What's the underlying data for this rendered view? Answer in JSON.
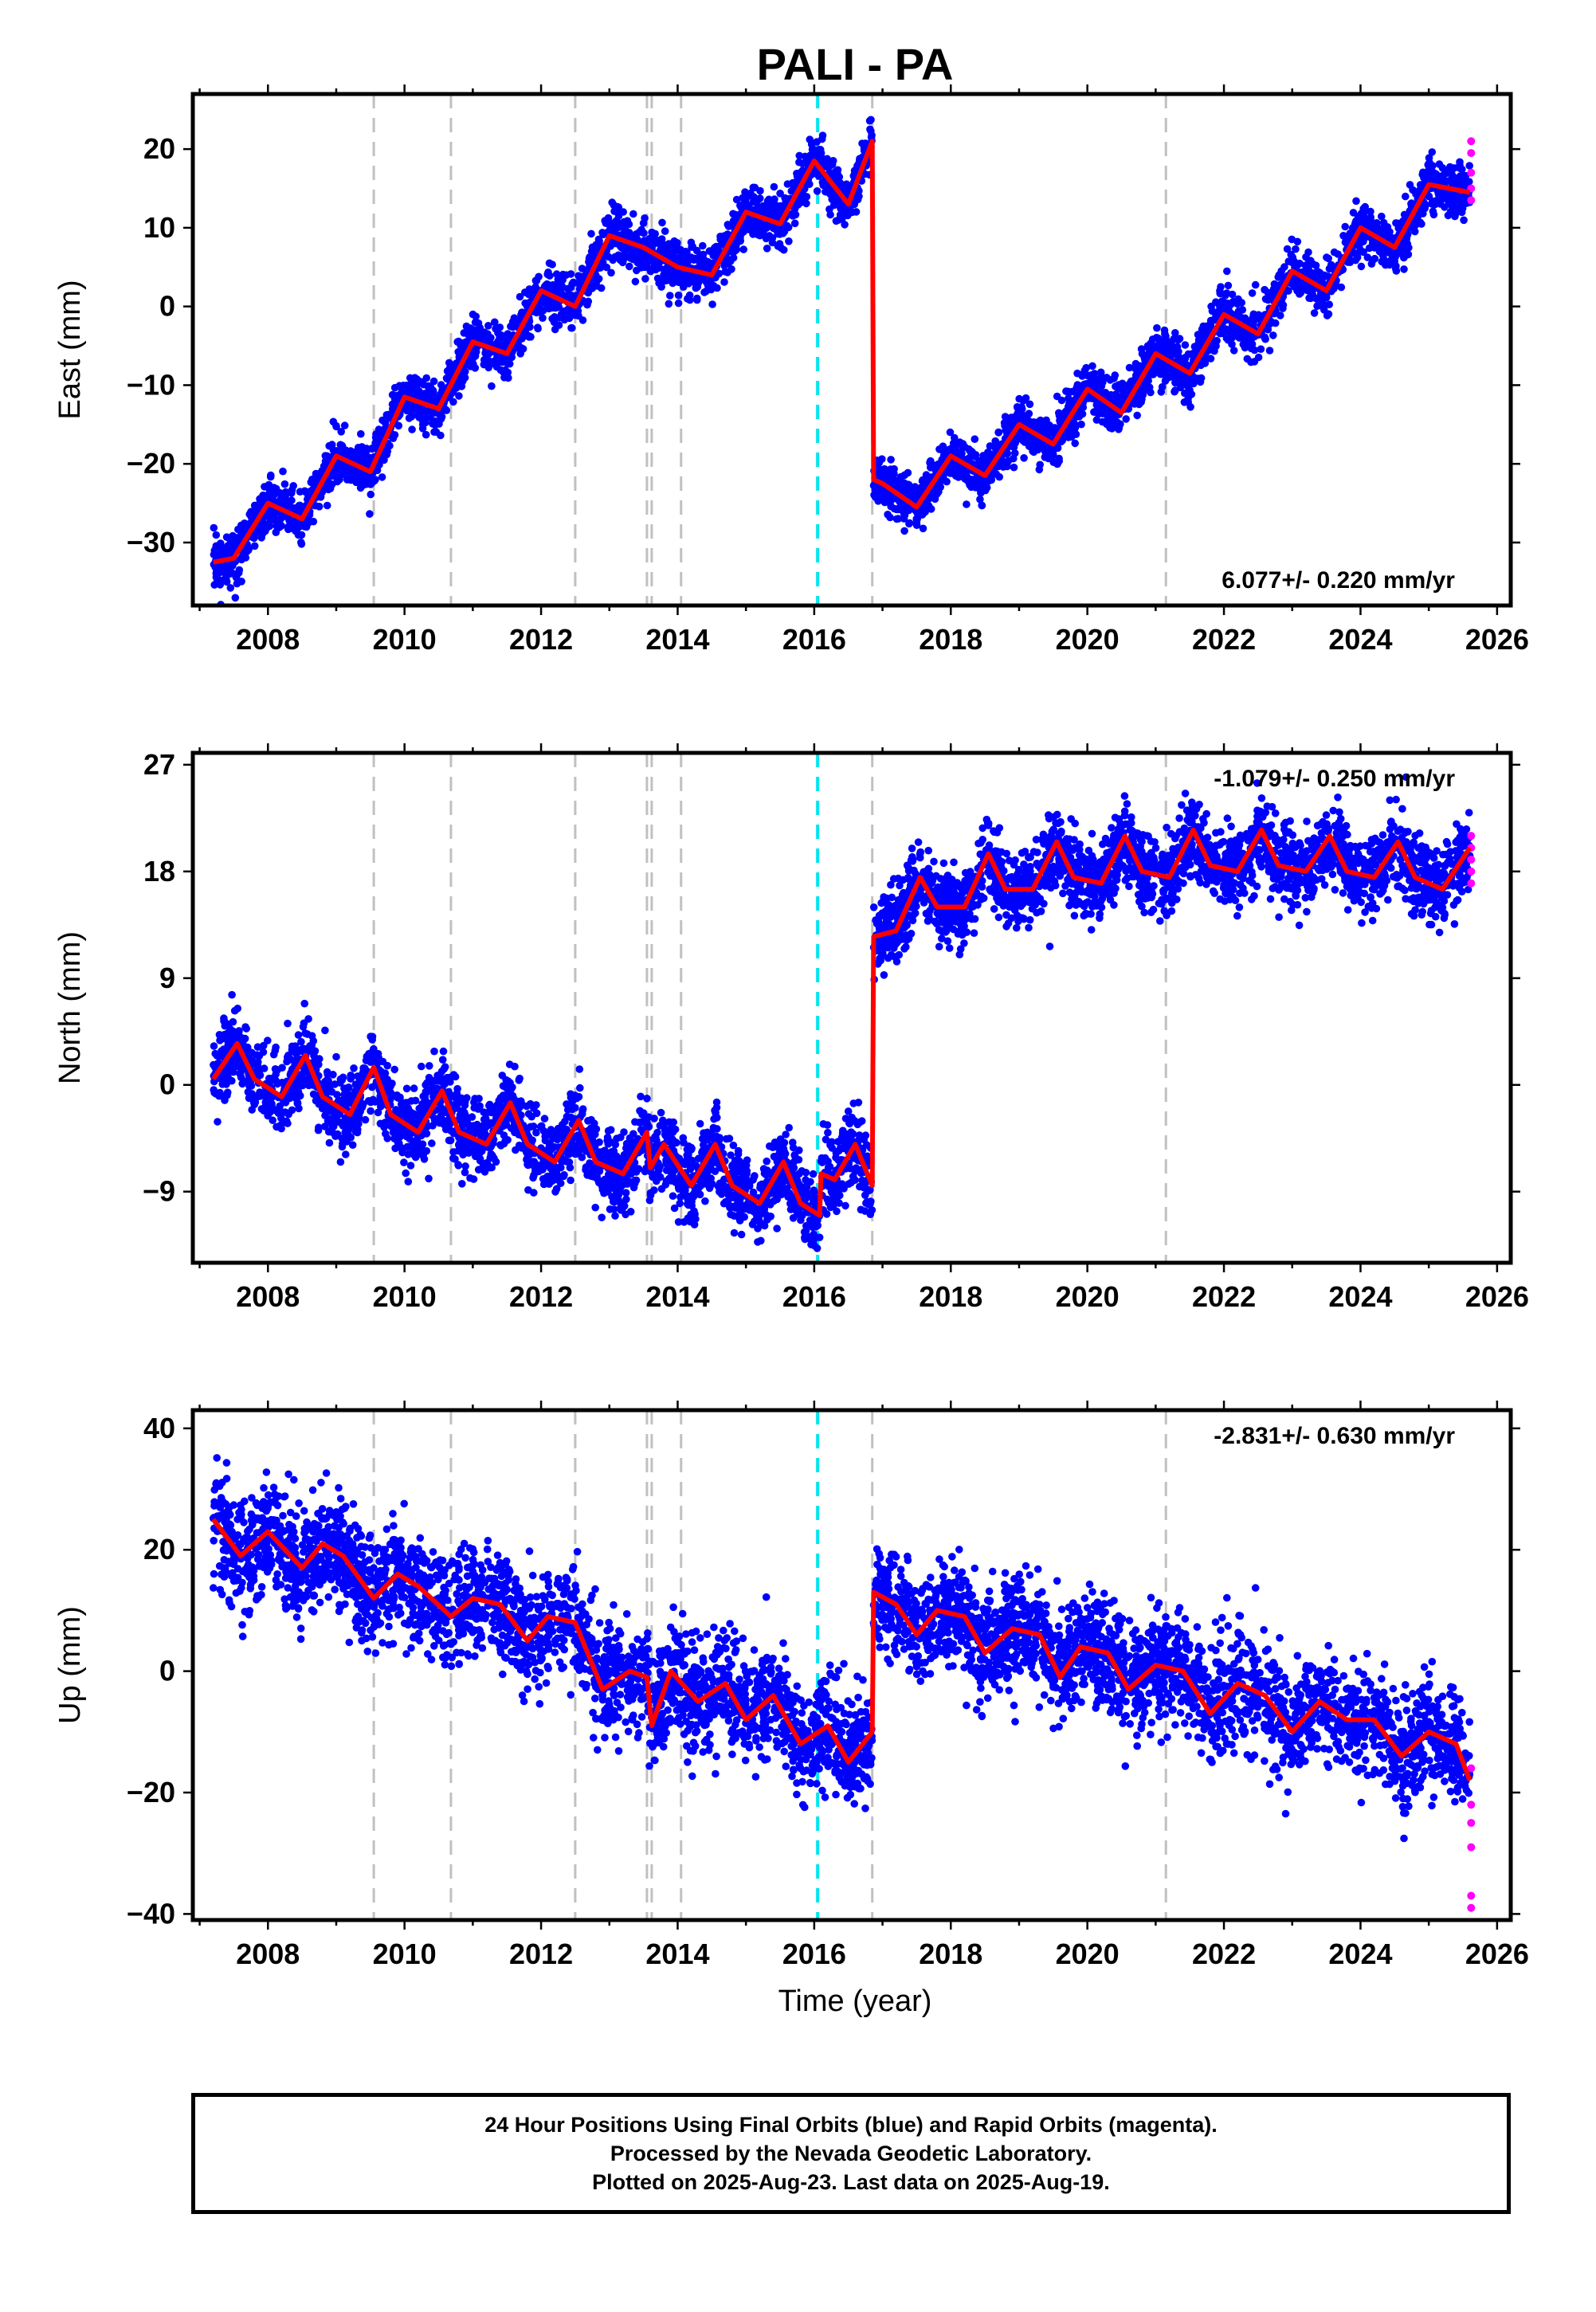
{
  "figure_title": "PALI - PA",
  "xlabel": "Time (year)",
  "footer": {
    "line1": "24 Hour Positions Using Final Orbits (blue) and Rapid Orbits (magenta).",
    "line2": "Processed by the Nevada Geodetic Laboratory.",
    "line3": "Plotted on 2025-Aug-23. Last data on 2025-Aug-19."
  },
  "colors": {
    "final_orbits": "#0000ff",
    "rapid_orbits": "#ff00ff",
    "model": "#ff0000",
    "equipment_change": "#c0c0c0",
    "earthquake": "#00e5ee"
  },
  "chart_data": [
    {
      "type": "scatter",
      "component": "east",
      "ylabel": "East (mm)",
      "rate_text": "6.077+/- 0.220 mm/yr",
      "rate_position": "bottom-right",
      "xlim": [
        2006.9,
        2026.2
      ],
      "ylim": [
        -38,
        27
      ],
      "xticks": [
        2008,
        2010,
        2012,
        2014,
        2016,
        2018,
        2020,
        2022,
        2024,
        2026
      ],
      "yticks": [
        -30,
        -20,
        -10,
        0,
        10,
        20
      ],
      "grid": false,
      "vertical_lines_gray": [
        2009.55,
        2010.68,
        2012.5,
        2013.55,
        2013.62,
        2014.05,
        2016.85,
        2021.15
      ],
      "vertical_lines_cyan": [
        2016.05
      ],
      "model_segments": [
        {
          "x": [
            2007.2,
            2007.5,
            2008.0,
            2008.5,
            2009.0,
            2009.5,
            2010.0,
            2010.5,
            2011.0,
            2011.5,
            2012.0,
            2012.5,
            2013.0,
            2013.5,
            2014.0,
            2014.5,
            2015.0,
            2015.5,
            2016.0,
            2016.5,
            2016.85
          ],
          "y": [
            -32.5,
            -32.0,
            -25.0,
            -27.0,
            -19.0,
            -21.0,
            -11.5,
            -13.0,
            -4.5,
            -6.0,
            2.0,
            0.0,
            9.0,
            7.5,
            5.0,
            4.0,
            12.0,
            10.5,
            18.5,
            13.0,
            21.0
          ]
        },
        {
          "x": [
            2016.87,
            2017.0,
            2017.5,
            2018.0,
            2018.5,
            2019.0,
            2019.5,
            2020.0,
            2020.5,
            2021.0,
            2021.5,
            2022.0,
            2022.5,
            2023.0,
            2023.5,
            2024.0,
            2024.5,
            2025.0,
            2025.6
          ],
          "y": [
            -22.0,
            -22.5,
            -25.5,
            -19.0,
            -21.5,
            -15.0,
            -17.5,
            -10.5,
            -13.5,
            -6.0,
            -8.5,
            -1.0,
            -3.5,
            4.5,
            2.0,
            10.0,
            7.5,
            15.5,
            14.5
          ]
        }
      ],
      "scatter_final": {
        "x": [
          2007.25,
          2007.6,
          2008.0,
          2008.3,
          2008.6,
          2009.0,
          2009.3,
          2009.7,
          2010.0,
          2010.3,
          2010.8,
          2011.0,
          2011.4,
          2011.8,
          2012.0,
          2012.3,
          2012.8,
          2013.0,
          2013.3,
          2013.8,
          2014.2,
          2014.6,
          2015.0,
          2015.3,
          2015.7,
          2016.0,
          2016.3,
          2016.7,
          2017.1,
          2017.5,
          2017.9,
          2018.3,
          2018.7,
          2019.0,
          2019.4,
          2019.8,
          2020.2,
          2020.6,
          2021.0,
          2021.4,
          2021.8,
          2022.2,
          2022.6,
          2023.0,
          2023.4,
          2023.8,
          2024.2,
          2024.6,
          2025.0,
          2025.5
        ],
        "y": [
          -33,
          -30,
          -25,
          -28,
          -24,
          -19,
          -22,
          -16,
          -11,
          -14,
          -7,
          -4,
          -7,
          0,
          2,
          -1,
          7,
          9,
          7,
          6,
          4,
          6,
          12,
          10,
          15,
          18,
          13,
          17,
          -24,
          -27,
          -19,
          -22,
          -16,
          -15,
          -17,
          -12,
          -11,
          -13,
          -7,
          -8,
          -3,
          -1,
          -4,
          3,
          3,
          8,
          10,
          8,
          14,
          13
        ]
      },
      "scatter_rapid": {
        "x": [
          2025.62,
          2025.62,
          2025.62,
          2025.62,
          2025.62
        ],
        "y": [
          13.5,
          15.0,
          17.0,
          19.5,
          21.0
        ]
      }
    },
    {
      "type": "scatter",
      "component": "north",
      "ylabel": "North (mm)",
      "rate_text": "-1.079+/- 0.250 mm/yr",
      "rate_position": "top-right",
      "xlim": [
        2006.9,
        2026.2
      ],
      "ylim": [
        -15,
        28
      ],
      "xticks": [
        2008,
        2010,
        2012,
        2014,
        2016,
        2018,
        2020,
        2022,
        2024,
        2026
      ],
      "yticks": [
        -9,
        0,
        9,
        18,
        27
      ],
      "grid": false,
      "vertical_lines_gray": [
        2009.55,
        2010.68,
        2012.5,
        2013.55,
        2013.62,
        2014.05,
        2016.85,
        2021.15
      ],
      "vertical_lines_cyan": [
        2016.05
      ],
      "model_segments": [
        {
          "x": [
            2007.2,
            2007.55,
            2007.8,
            2008.2,
            2008.55,
            2008.8,
            2009.2,
            2009.55,
            2009.8,
            2010.2,
            2010.55,
            2010.8,
            2011.2,
            2011.55,
            2011.8,
            2012.2,
            2012.55,
            2012.8,
            2013.2,
            2013.55,
            2013.6,
            2013.8,
            2014.2,
            2014.55,
            2014.8,
            2015.2,
            2015.55,
            2015.8,
            2016.08
          ],
          "y": [
            0.5,
            3.5,
            0.5,
            -1.0,
            2.5,
            -1.0,
            -2.5,
            1.5,
            -2.5,
            -4.0,
            -0.5,
            -4.0,
            -5.0,
            -1.5,
            -5.0,
            -6.5,
            -3.0,
            -6.5,
            -7.5,
            -4.0,
            -7.0,
            -5.0,
            -8.5,
            -5.0,
            -8.5,
            -10.0,
            -6.5,
            -10.0,
            -11.0
          ]
        },
        {
          "x": [
            2016.1,
            2016.3,
            2016.6,
            2016.85
          ],
          "y": [
            -7.5,
            -8.0,
            -5.0,
            -8.5
          ]
        },
        {
          "x": [
            2016.87,
            2017.2,
            2017.55,
            2017.8,
            2018.2,
            2018.55,
            2018.8,
            2019.2,
            2019.55,
            2019.8,
            2020.2,
            2020.55,
            2020.8,
            2021.2,
            2021.55,
            2021.8,
            2022.2,
            2022.55,
            2022.8,
            2023.2,
            2023.55,
            2023.8,
            2024.2,
            2024.55,
            2024.8,
            2025.2,
            2025.6
          ],
          "y": [
            12.5,
            13.0,
            17.5,
            15.0,
            15.0,
            19.5,
            16.5,
            16.5,
            20.5,
            17.5,
            17.0,
            21.0,
            18.0,
            17.5,
            21.5,
            18.5,
            18.0,
            21.5,
            18.5,
            18.0,
            21.0,
            18.0,
            17.5,
            20.5,
            17.5,
            16.5,
            20.0
          ]
        }
      ],
      "scatter_final": {
        "x": [
          2007.3,
          2007.6,
          2008.0,
          2008.5,
          2008.9,
          2009.3,
          2009.6,
          2010.0,
          2010.4,
          2010.8,
          2011.2,
          2011.6,
          2012.0,
          2012.4,
          2012.8,
          2013.2,
          2013.7,
          2014.1,
          2014.5,
          2014.9,
          2015.3,
          2015.7,
          2016.0,
          2016.4,
          2016.7,
          2017.1,
          2017.5,
          2017.9,
          2018.3,
          2018.7,
          2019.1,
          2019.5,
          2019.9,
          2020.3,
          2020.7,
          2021.1,
          2021.5,
          2021.9,
          2022.3,
          2022.7,
          2023.1,
          2023.5,
          2023.9,
          2024.3,
          2024.7,
          2025.1,
          2025.5
        ],
        "y": [
          1,
          4,
          0,
          3,
          -2,
          -3,
          2,
          -4,
          -2,
          -5,
          -5,
          -2,
          -6,
          -5,
          -7,
          -8,
          -5,
          -9,
          -6,
          -10,
          -10,
          -7,
          -11,
          -7,
          -6,
          13,
          17,
          15,
          15,
          19,
          17,
          18,
          17,
          18,
          20,
          18,
          20,
          19,
          19,
          21,
          18,
          20,
          18,
          18,
          20,
          16,
          19
        ]
      },
      "scatter_rapid": {
        "x": [
          2025.62,
          2025.62,
          2025.62,
          2025.62,
          2025.62
        ],
        "y": [
          17.0,
          18.0,
          19.0,
          20.0,
          21.0
        ]
      }
    },
    {
      "type": "scatter",
      "component": "up",
      "ylabel": "Up (mm)",
      "rate_text": "-2.831+/- 0.630 mm/yr",
      "rate_position": "top-right",
      "xlim": [
        2006.9,
        2026.2
      ],
      "ylim": [
        -41,
        43
      ],
      "xticks": [
        2008,
        2010,
        2012,
        2014,
        2016,
        2018,
        2020,
        2022,
        2024,
        2026
      ],
      "yticks": [
        -40,
        -20,
        0,
        20,
        40
      ],
      "grid": false,
      "vertical_lines_gray": [
        2009.55,
        2010.68,
        2012.5,
        2013.55,
        2013.62,
        2014.05,
        2016.85,
        2021.15
      ],
      "vertical_lines_cyan": [
        2016.05
      ],
      "model_segments": [
        {
          "x": [
            2007.2,
            2007.6,
            2008.0,
            2008.5,
            2008.8,
            2009.1,
            2009.55,
            2009.9,
            2010.2,
            2010.68,
            2011.0,
            2011.4,
            2011.8,
            2012.1,
            2012.5,
            2012.9,
            2013.3,
            2013.55,
            2013.62,
            2013.9,
            2014.3,
            2014.7,
            2015.0,
            2015.4,
            2015.8,
            2016.2,
            2016.5,
            2016.85
          ],
          "y": [
            25,
            19,
            23,
            17,
            21,
            19,
            12,
            16,
            14,
            9,
            12,
            11,
            5,
            9,
            8,
            -3,
            0,
            -1,
            -9,
            0,
            -5,
            -2,
            -8,
            -4,
            -12,
            -9,
            -15,
            -10
          ]
        },
        {
          "x": [
            2016.87,
            2017.2,
            2017.5,
            2017.8,
            2018.2,
            2018.5,
            2018.9,
            2019.3,
            2019.6,
            2019.9,
            2020.3,
            2020.6,
            2021.0,
            2021.4,
            2021.8,
            2022.2,
            2022.6,
            2023.0,
            2023.4,
            2023.8,
            2024.2,
            2024.6,
            2025.0,
            2025.4,
            2025.6
          ],
          "y": [
            13,
            11,
            6,
            10,
            9,
            3,
            7,
            6,
            -1,
            4,
            3,
            -3,
            1,
            0,
            -7,
            -2,
            -4,
            -10,
            -5,
            -8,
            -8,
            -14,
            -10,
            -12,
            -18
          ]
        }
      ],
      "scatter_final": {
        "x": [
          2007.3,
          2007.7,
          2008.1,
          2008.5,
          2008.9,
          2009.3,
          2009.7,
          2010.1,
          2010.5,
          2010.9,
          2011.3,
          2011.7,
          2012.1,
          2012.5,
          2012.9,
          2013.3,
          2013.7,
          2014.1,
          2014.5,
          2014.9,
          2015.3,
          2015.7,
          2016.0,
          2016.4,
          2016.7,
          2017.1,
          2017.5,
          2017.9,
          2018.3,
          2018.7,
          2019.1,
          2019.5,
          2019.9,
          2020.3,
          2020.7,
          2021.1,
          2021.5,
          2021.9,
          2022.3,
          2022.7,
          2023.1,
          2023.5,
          2023.9,
          2024.3,
          2024.7,
          2025.1,
          2025.5
        ],
        "y": [
          27,
          22,
          24,
          18,
          22,
          16,
          14,
          16,
          12,
          10,
          13,
          6,
          9,
          2,
          -4,
          1,
          -6,
          1,
          -4,
          -6,
          -5,
          -12,
          -12,
          -10,
          -15,
          12,
          9,
          8,
          9,
          4,
          7,
          5,
          0,
          4,
          -3,
          1,
          0,
          -6,
          -3,
          -6,
          -9,
          -5,
          -9,
          -9,
          -12,
          -11,
          -15
        ]
      },
      "scatter_rapid": {
        "x": [
          2025.62,
          2025.62,
          2025.62,
          2025.62,
          2025.62,
          2025.62
        ],
        "y": [
          -16,
          -22,
          -25,
          -29,
          -37,
          -39
        ]
      }
    }
  ]
}
